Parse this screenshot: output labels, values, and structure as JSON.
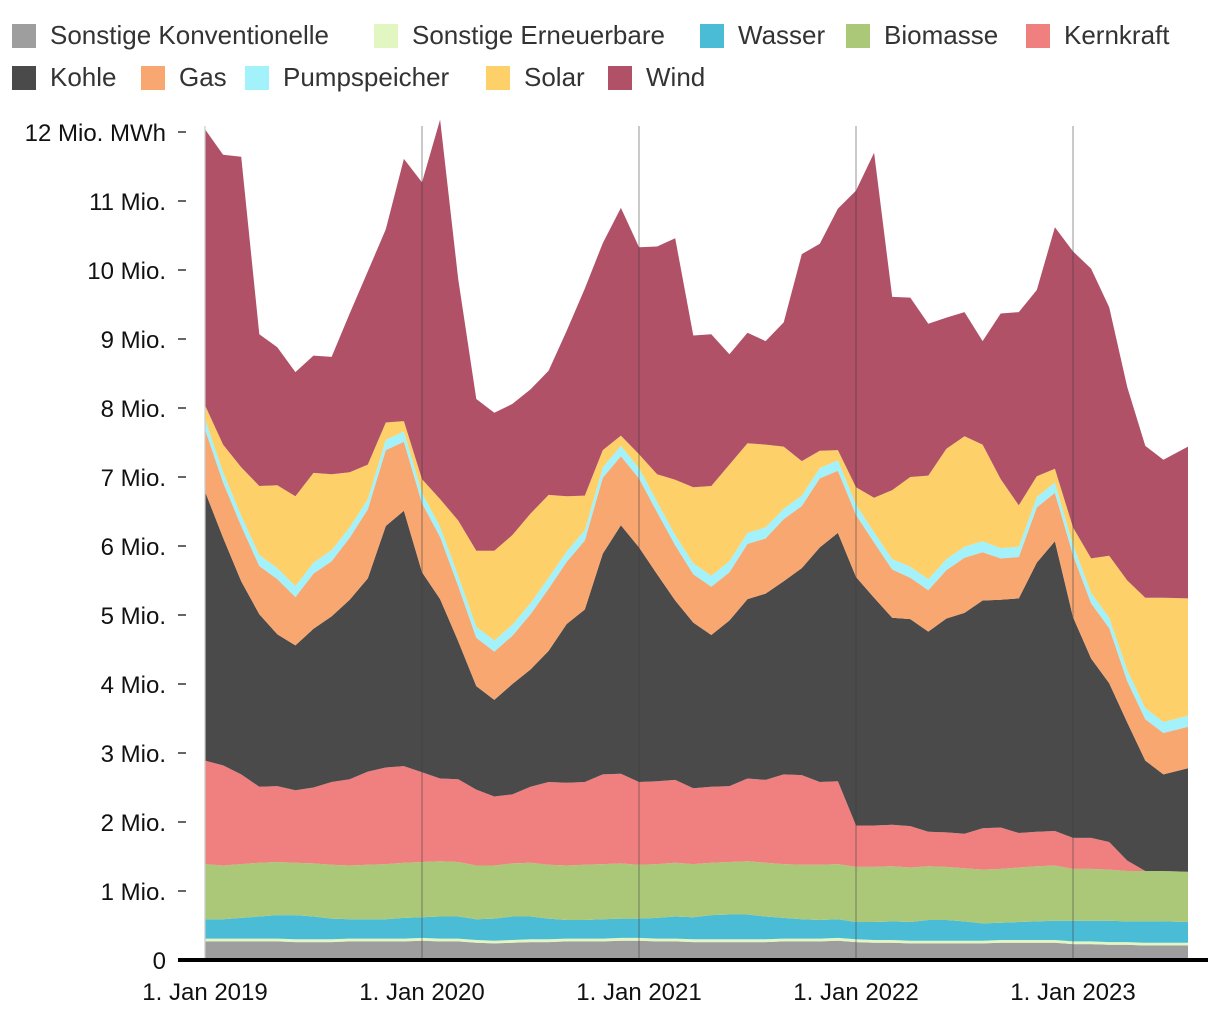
{
  "chart_data": {
    "type": "area",
    "stacked": true,
    "ylabel_unit": "MWh",
    "ylim": [
      0,
      12
    ],
    "y_ticks": [
      "0",
      "1 Mio.",
      "2 Mio.",
      "3 Mio.",
      "4 Mio.",
      "5 Mio.",
      "6 Mio.",
      "7 Mio.",
      "8 Mio.",
      "9 Mio.",
      "10 Mio.",
      "11 Mio.",
      "12 Mio. MWh"
    ],
    "x_ticks": [
      "1. Jan 2019",
      "1. Jan 2020",
      "1. Jan 2021",
      "1. Jan 2022",
      "1. Jan 2023"
    ],
    "x_start": "2019-01",
    "legend": "top",
    "series": [
      {
        "name": "Sonstige Konventionelle",
        "color": "#9e9e9e",
        "values": [
          0.27,
          0.27,
          0.27,
          0.27,
          0.27,
          0.26,
          0.26,
          0.26,
          0.27,
          0.27,
          0.27,
          0.27,
          0.28,
          0.27,
          0.27,
          0.25,
          0.24,
          0.25,
          0.26,
          0.26,
          0.27,
          0.27,
          0.27,
          0.28,
          0.28,
          0.27,
          0.27,
          0.26,
          0.26,
          0.26,
          0.26,
          0.26,
          0.27,
          0.27,
          0.27,
          0.28,
          0.26,
          0.25,
          0.25,
          0.24,
          0.24,
          0.24,
          0.24,
          0.24,
          0.25,
          0.25,
          0.25,
          0.25,
          0.23,
          0.23,
          0.22,
          0.22,
          0.21,
          0.21,
          0.21
        ]
      },
      {
        "name": "Sonstige Erneuerbare",
        "color": "#e2f6c2",
        "values": [
          0.04,
          0.04,
          0.04,
          0.04,
          0.04,
          0.04,
          0.04,
          0.04,
          0.04,
          0.04,
          0.04,
          0.04,
          0.04,
          0.04,
          0.04,
          0.04,
          0.04,
          0.04,
          0.04,
          0.04,
          0.04,
          0.04,
          0.04,
          0.04,
          0.04,
          0.04,
          0.04,
          0.04,
          0.04,
          0.04,
          0.04,
          0.04,
          0.04,
          0.04,
          0.04,
          0.04,
          0.04,
          0.04,
          0.04,
          0.04,
          0.04,
          0.04,
          0.04,
          0.04,
          0.04,
          0.04,
          0.04,
          0.04,
          0.04,
          0.04,
          0.04,
          0.04,
          0.04,
          0.04,
          0.04
        ]
      },
      {
        "name": "Wasser",
        "color": "#4bbcd6",
        "values": [
          0.28,
          0.28,
          0.3,
          0.32,
          0.34,
          0.35,
          0.33,
          0.3,
          0.28,
          0.28,
          0.28,
          0.3,
          0.3,
          0.32,
          0.32,
          0.3,
          0.32,
          0.34,
          0.33,
          0.3,
          0.27,
          0.27,
          0.28,
          0.28,
          0.28,
          0.3,
          0.32,
          0.32,
          0.35,
          0.36,
          0.36,
          0.33,
          0.3,
          0.28,
          0.27,
          0.27,
          0.25,
          0.26,
          0.27,
          0.27,
          0.3,
          0.3,
          0.28,
          0.25,
          0.25,
          0.26,
          0.27,
          0.28,
          0.3,
          0.3,
          0.31,
          0.3,
          0.31,
          0.31,
          0.3
        ]
      },
      {
        "name": "Biomasse",
        "color": "#abc879",
        "values": [
          0.8,
          0.78,
          0.78,
          0.78,
          0.77,
          0.76,
          0.77,
          0.78,
          0.78,
          0.79,
          0.8,
          0.8,
          0.8,
          0.8,
          0.79,
          0.78,
          0.77,
          0.77,
          0.78,
          0.78,
          0.79,
          0.8,
          0.8,
          0.8,
          0.78,
          0.78,
          0.78,
          0.77,
          0.76,
          0.76,
          0.77,
          0.78,
          0.78,
          0.79,
          0.8,
          0.8,
          0.8,
          0.8,
          0.8,
          0.79,
          0.78,
          0.77,
          0.77,
          0.78,
          0.78,
          0.79,
          0.8,
          0.8,
          0.75,
          0.75,
          0.74,
          0.73,
          0.73,
          0.73,
          0.73
        ]
      },
      {
        "name": "Kernkraft",
        "color": "#f07f80",
        "values": [
          1.5,
          1.45,
          1.3,
          1.1,
          1.1,
          1.05,
          1.1,
          1.2,
          1.25,
          1.35,
          1.4,
          1.4,
          1.3,
          1.2,
          1.2,
          1.1,
          1.0,
          1.0,
          1.1,
          1.2,
          1.2,
          1.2,
          1.3,
          1.3,
          1.2,
          1.2,
          1.2,
          1.1,
          1.1,
          1.1,
          1.2,
          1.2,
          1.3,
          1.3,
          1.2,
          1.2,
          0.6,
          0.6,
          0.6,
          0.6,
          0.5,
          0.5,
          0.5,
          0.6,
          0.6,
          0.5,
          0.5,
          0.5,
          0.45,
          0.45,
          0.4,
          0.15,
          0,
          0,
          0
        ]
      },
      {
        "name": "Kohle",
        "color": "#4a4a4a",
        "values": [
          3.9,
          3.3,
          2.8,
          2.5,
          2.2,
          2.1,
          2.3,
          2.4,
          2.6,
          2.8,
          3.5,
          3.7,
          2.9,
          2.6,
          2.0,
          1.5,
          1.4,
          1.6,
          1.7,
          1.9,
          2.3,
          2.5,
          3.2,
          3.6,
          3.4,
          3.0,
          2.6,
          2.4,
          2.2,
          2.4,
          2.6,
          2.7,
          2.8,
          3.0,
          3.4,
          3.6,
          3.6,
          3.3,
          3.0,
          3.0,
          2.9,
          3.1,
          3.2,
          3.3,
          3.3,
          3.4,
          3.9,
          4.2,
          3.2,
          2.6,
          2.3,
          2.0,
          1.6,
          1.4,
          1.5
        ]
      },
      {
        "name": "Gas",
        "color": "#f8a771",
        "values": [
          0.9,
          0.8,
          0.8,
          0.7,
          0.8,
          0.7,
          0.8,
          0.8,
          0.9,
          1.0,
          1.1,
          1.0,
          1.0,
          0.9,
          0.8,
          0.7,
          0.7,
          0.7,
          0.8,
          0.9,
          0.9,
          1.0,
          1.1,
          1.0,
          1.0,
          0.9,
          0.8,
          0.7,
          0.7,
          0.7,
          0.8,
          0.8,
          0.9,
          0.9,
          1.0,
          0.9,
          0.9,
          0.8,
          0.7,
          0.6,
          0.6,
          0.7,
          0.8,
          0.7,
          0.6,
          0.6,
          0.8,
          0.7,
          0.9,
          0.8,
          0.8,
          0.6,
          0.6,
          0.6,
          0.6
        ]
      },
      {
        "name": "Pumpspeicher",
        "color": "#a3f1fa",
        "values": [
          0.15,
          0.15,
          0.15,
          0.16,
          0.16,
          0.16,
          0.16,
          0.16,
          0.15,
          0.15,
          0.15,
          0.15,
          0.15,
          0.15,
          0.15,
          0.16,
          0.16,
          0.16,
          0.16,
          0.16,
          0.15,
          0.15,
          0.15,
          0.15,
          0.15,
          0.15,
          0.15,
          0.16,
          0.16,
          0.16,
          0.16,
          0.16,
          0.15,
          0.15,
          0.15,
          0.15,
          0.15,
          0.15,
          0.15,
          0.16,
          0.16,
          0.16,
          0.16,
          0.16,
          0.15,
          0.15,
          0.15,
          0.15,
          0.15,
          0.15,
          0.15,
          0.16,
          0.16,
          0.16,
          0.16
        ]
      },
      {
        "name": "Solar",
        "color": "#fdd069",
        "values": [
          0.2,
          0.4,
          0.7,
          1.0,
          1.2,
          1.3,
          1.3,
          1.1,
          0.8,
          0.5,
          0.25,
          0.15,
          0.2,
          0.4,
          0.8,
          1.1,
          1.3,
          1.3,
          1.3,
          1.2,
          0.8,
          0.5,
          0.25,
          0.15,
          0.2,
          0.4,
          0.8,
          1.1,
          1.3,
          1.4,
          1.3,
          1.2,
          0.9,
          0.5,
          0.25,
          0.15,
          0.25,
          0.5,
          1.0,
          1.3,
          1.5,
          1.6,
          1.6,
          1.4,
          1.0,
          0.6,
          0.3,
          0.2,
          0.25,
          0.5,
          0.9,
          1.3,
          1.6,
          1.8,
          1.7
        ]
      },
      {
        "name": "Wind",
        "color": "#b05168",
        "values": [
          4.0,
          4.2,
          4.5,
          2.2,
          2.0,
          1.8,
          1.7,
          1.7,
          2.3,
          2.8,
          2.8,
          3.8,
          4.3,
          5.5,
          3.5,
          2.2,
          2.0,
          1.9,
          1.8,
          1.8,
          2.4,
          3.0,
          3.0,
          3.3,
          3.0,
          3.3,
          3.5,
          2.2,
          2.2,
          1.6,
          1.6,
          1.5,
          1.8,
          3.0,
          3.0,
          3.5,
          4.3,
          5.0,
          2.8,
          2.6,
          2.2,
          1.9,
          1.8,
          1.5,
          2.4,
          2.8,
          2.7,
          3.5,
          4.0,
          4.2,
          3.6,
          2.8,
          2.2,
          2.0,
          2.2
        ]
      }
    ]
  }
}
